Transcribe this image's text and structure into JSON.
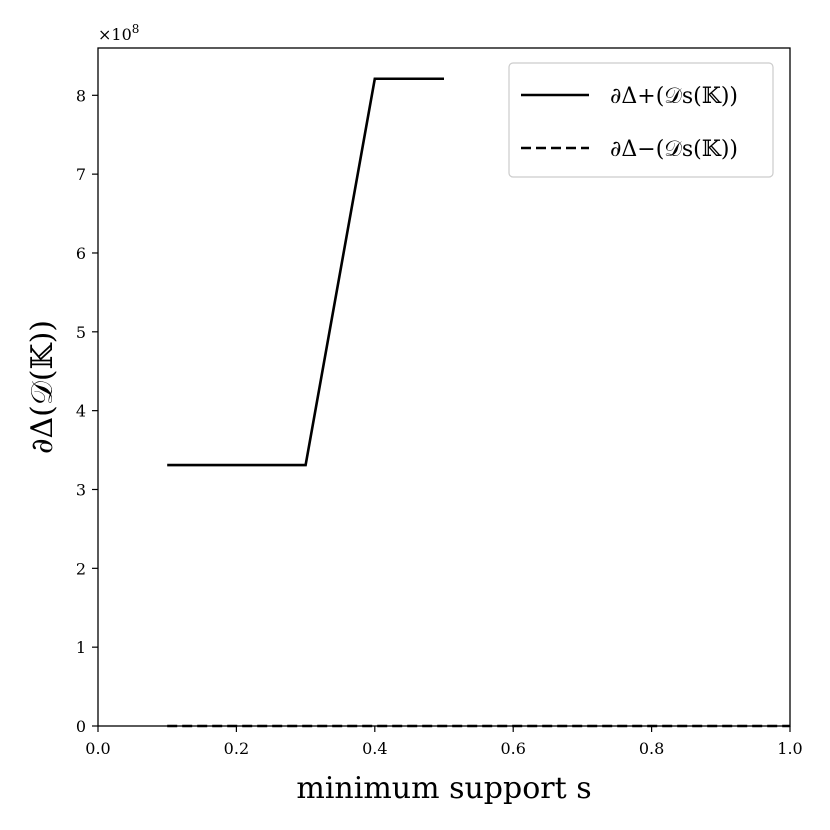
{
  "chart_data": {
    "type": "line",
    "xlabel": "minimum support s",
    "ylabel": "∂Δ(𝒟(𝕂))",
    "y_multiplier_label": "×10",
    "y_multiplier_exp": "8",
    "xlim": [
      0.0,
      1.0
    ],
    "ylim": [
      0,
      8.6
    ],
    "x_ticks": [
      0.0,
      0.2,
      0.4,
      0.6,
      0.8,
      1.0
    ],
    "x_tick_labels": [
      "0.0",
      "0.2",
      "0.4",
      "0.6",
      "0.8",
      "1.0"
    ],
    "y_ticks": [
      0,
      1,
      2,
      3,
      4,
      5,
      6,
      7,
      8
    ],
    "y_tick_labels": [
      "0",
      "1",
      "2",
      "3",
      "4",
      "5",
      "6",
      "7",
      "8"
    ],
    "legend_position": "top-right",
    "grid": false,
    "series": [
      {
        "name": "∂Δ+(𝒟s(𝕂))",
        "style": "solid",
        "color": "#000000",
        "x": [
          0.1,
          0.2,
          0.3,
          0.4,
          0.5
        ],
        "y": [
          3.31,
          3.31,
          3.31,
          8.21,
          8.21
        ]
      },
      {
        "name": "∂Δ−(𝒟s(𝕂))",
        "style": "dashed",
        "color": "#000000",
        "x": [
          0.1,
          0.2,
          0.3,
          0.4,
          0.5,
          0.6,
          0.7,
          0.8,
          0.9,
          1.0
        ],
        "y": [
          0,
          0,
          0,
          0,
          0,
          0,
          0,
          0,
          0,
          0
        ]
      }
    ]
  }
}
